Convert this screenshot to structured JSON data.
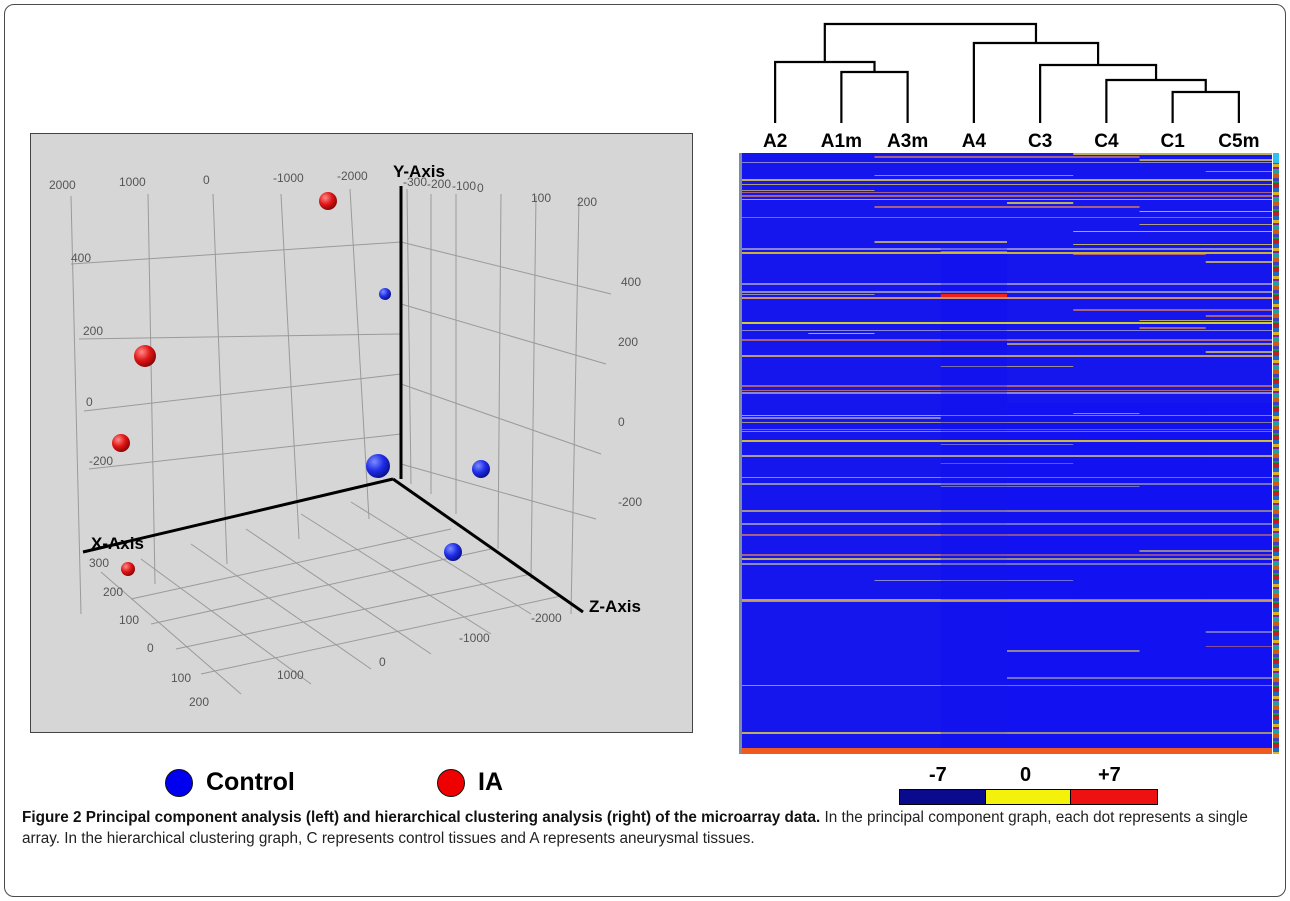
{
  "chart_data": [
    {
      "type": "scatter",
      "title": "",
      "projection": "3d",
      "axes": {
        "x": {
          "label": "X-Axis",
          "ticks": [
            "300",
            "200",
            "100",
            "0",
            "100",
            "200",
            "2000"
          ],
          "depth_ticks": [
            "2000",
            "1000",
            "0",
            "-1000",
            "-2000"
          ]
        },
        "y": {
          "label": "Y-Axis",
          "ticks_left": [
            "400",
            "200",
            "0",
            "-200"
          ],
          "ticks_right": [
            "400",
            "200",
            "0",
            "-200"
          ],
          "top_ticks": [
            "-300",
            "-200",
            "-100",
            "0",
            "100",
            "200"
          ]
        },
        "z": {
          "label": "Z-Axis",
          "ticks": [
            "1000",
            "0",
            "-1000",
            "-2000"
          ]
        }
      },
      "series": [
        {
          "name": "Control",
          "color": "#0000ee",
          "count": 4
        },
        {
          "name": "IA",
          "color": "#ee0000",
          "count": 4
        }
      ],
      "grid": true,
      "background": "#d6d6d6"
    },
    {
      "type": "heatmap",
      "columns": [
        "A2",
        "A1m",
        "A3m",
        "A4",
        "C3",
        "C4",
        "C1",
        "C5m"
      ],
      "dendrogram_order": [
        "A2",
        "A1m",
        "A3m",
        "A4",
        "C3",
        "C4",
        "C1",
        "C5m"
      ],
      "colorscale": {
        "min": "-7",
        "mid": "0",
        "max": "+7",
        "colors": [
          "#0a0a8c",
          "#f4f20a",
          "#ee1111"
        ]
      },
      "base_color": "#1515ee"
    }
  ],
  "legend": [
    {
      "label": "Control",
      "color": "#0000ee"
    },
    {
      "label": "IA",
      "color": "#ee0000"
    }
  ],
  "caption": {
    "bold": "Figure 2 Principal component analysis (left) and hierarchical clustering analysis (right) of the microarray data.",
    "rest": " In the principal component graph, each dot represents a single array. In the hierarchical clustering graph, C represents control tissues and A represents aneurysmal tissues."
  }
}
